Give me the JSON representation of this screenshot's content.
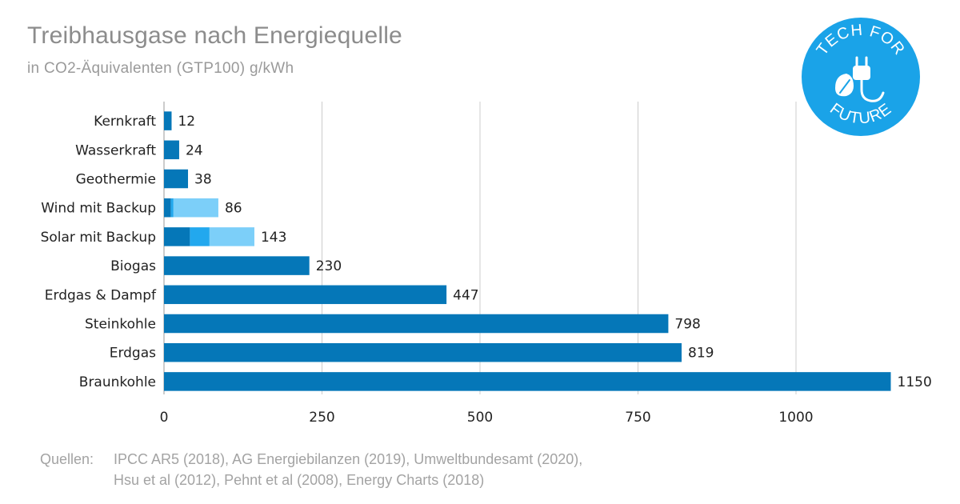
{
  "header": {
    "title": "Treibhausgase nach Energiequelle",
    "subtitle": "in CO2-Äquivalenten (GTP100) g/kWh"
  },
  "logo": {
    "name": "tech-for-future-logo",
    "text_top": "TECH FOR",
    "text_bottom": "FUTURE",
    "color": "#1aa3e8",
    "icon": "plug-leaf-icon"
  },
  "sources": {
    "label": "Quellen:",
    "line1": "IPCC AR5 (2018), AG Energiebilanzen (2019), Umweltbundesamt (2020),",
    "line2": "Hsu et al (2012), Pehnt et al (2008),  Energy Charts (2018)"
  },
  "colors": {
    "primary": "#0577b8",
    "secondary": "#22a8ee",
    "tertiary": "#7ccff9",
    "grid": "#cccccc",
    "text": "#222222"
  },
  "chart_data": {
    "type": "bar",
    "orientation": "horizontal",
    "stacked": true,
    "categories": [
      "Kernkraft",
      "Wasserkraft",
      "Geothermie",
      "Wind mit Backup",
      "Solar mit Backup",
      "Biogas",
      "Erdgas & Dampf",
      "Steinkohle",
      "Erdgas",
      "Braunkohle"
    ],
    "series": [
      {
        "values": [
          12,
          24,
          38,
          11,
          41,
          230,
          447,
          798,
          819,
          1150
        ],
        "color": "#0577b8"
      },
      {
        "values": [
          0,
          0,
          0,
          4,
          31,
          0,
          0,
          0,
          0,
          0
        ],
        "color": "#22a8ee"
      },
      {
        "values": [
          0,
          0,
          0,
          71,
          71,
          0,
          0,
          0,
          0,
          0
        ],
        "color": "#7ccff9"
      }
    ],
    "totals": [
      12,
      24,
      38,
      86,
      143,
      230,
      447,
      798,
      819,
      1150
    ],
    "xticks": [
      "0",
      "250",
      "500",
      "750",
      "1000"
    ],
    "xlim": [
      0,
      1200
    ],
    "grid": true,
    "legend": "none"
  }
}
